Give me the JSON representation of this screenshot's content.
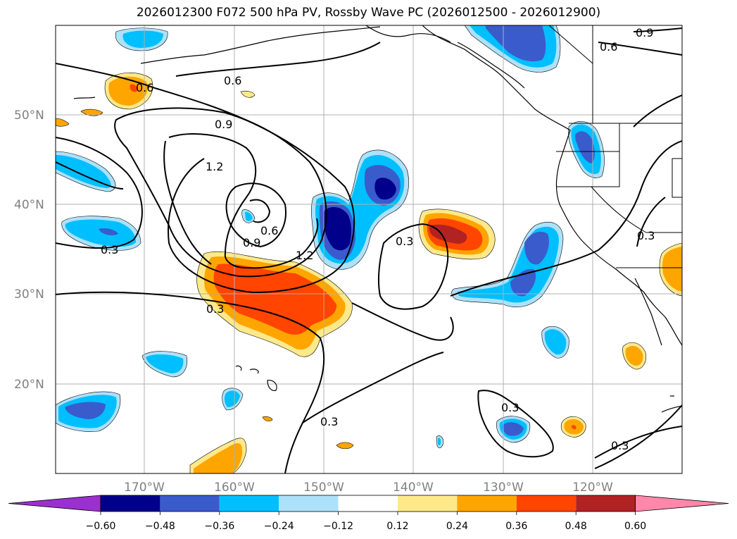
{
  "title": "2026012300 F072 500 hPa PV, Rossby Wave PC (2026012500 - 2026012900)",
  "lat_labels": [
    "50°N",
    "40°N",
    "30°N",
    "20°N"
  ],
  "lon_labels": [
    "170°W",
    "160°W",
    "150°W",
    "140°W",
    "130°W",
    "120°W"
  ],
  "contour_labels": [
    "0.9",
    "0.6",
    "0.6",
    "0.6",
    "0.9",
    "1.2",
    "0.6",
    "0.9",
    "1.2",
    "0.3",
    "0.3",
    "0.3",
    "0.3",
    "0.3",
    "0.3",
    "0.3"
  ],
  "colorbar": {
    "ticks": [
      "−0.60",
      "−0.48",
      "−0.36",
      "−0.24",
      "−0.12",
      "0.12",
      "0.24",
      "0.36",
      "0.48",
      "0.60"
    ],
    "colors": [
      "#9b30d0",
      "#00008b",
      "#3a5bcc",
      "#00bfff",
      "#ade1fa",
      "#ffffff",
      "#fde98a",
      "#ffa500",
      "#ff4500",
      "#b22222",
      "#ff88aa"
    ]
  },
  "map": {
    "projection": "cylindrical",
    "lon_range": [
      -180,
      -110
    ],
    "lat_range": [
      10,
      60
    ],
    "variable": "500 hPa PV (contours), Rossby Wave PC (shaded)",
    "contour_levels": [
      0.3,
      0.6,
      0.9,
      1.2
    ]
  }
}
